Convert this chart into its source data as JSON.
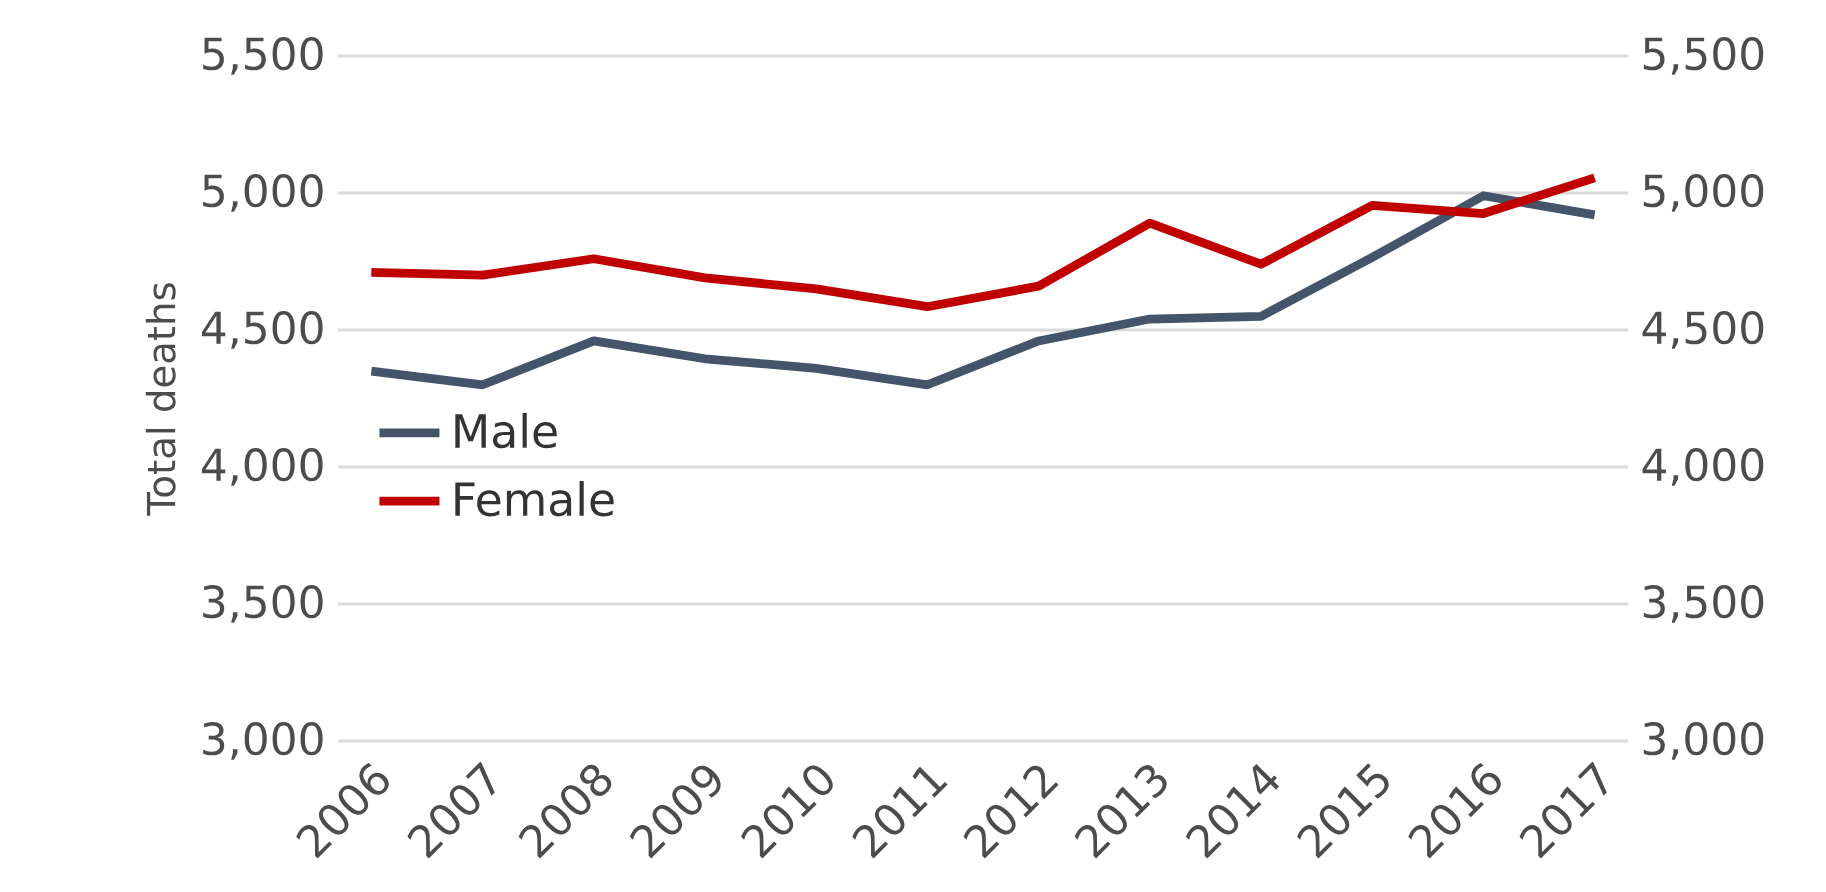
{
  "chart_data": {
    "type": "line",
    "ylabel": "Total deaths",
    "categories": [
      "2006",
      "2007",
      "2008",
      "2009",
      "2010",
      "2011",
      "2012",
      "2013",
      "2014",
      "2015",
      "2016",
      "2017"
    ],
    "series": [
      {
        "name": "Male",
        "color": "#44546a",
        "values": [
          4350,
          4300,
          4460,
          4395,
          4360,
          4300,
          4460,
          4540,
          4550,
          4765,
          4990,
          4920
        ]
      },
      {
        "name": "Female",
        "color": "#c00000",
        "values": [
          4710,
          4700,
          4760,
          4690,
          4650,
          4585,
          4660,
          4890,
          4740,
          4955,
          4925,
          5055
        ]
      }
    ],
    "ylim": [
      3000,
      5500
    ],
    "yticks": [
      {
        "value": 3000,
        "label": "3,000"
      },
      {
        "value": 3500,
        "label": "3,500"
      },
      {
        "value": 4000,
        "label": "4,000"
      },
      {
        "value": 4500,
        "label": "4,500"
      },
      {
        "value": 5000,
        "label": "5,000"
      },
      {
        "value": 5500,
        "label": "5,500"
      }
    ],
    "y2lim": [
      3000,
      5500
    ],
    "y2ticks": [
      {
        "value": 3000,
        "label": "3,000"
      },
      {
        "value": 3500,
        "label": "3,500"
      },
      {
        "value": 4000,
        "label": "4,000"
      },
      {
        "value": 4500,
        "label": "4,500"
      },
      {
        "value": 5000,
        "label": "5,000"
      },
      {
        "value": 5500,
        "label": "5,500"
      }
    ],
    "grid": "y",
    "legend": "left",
    "marker": "none",
    "line_style": "solid"
  }
}
